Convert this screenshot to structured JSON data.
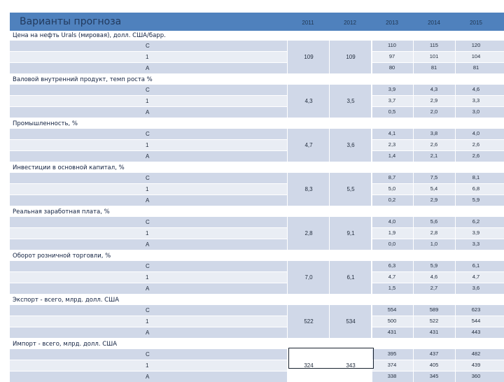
{
  "title": "Варианты прогноза",
  "years": [
    "2011",
    "2012",
    "2013",
    "2014",
    "2015"
  ],
  "sections": [
    {
      "label": "Цена на нефть Urals (мировая), долл. США/барр.",
      "v2011": "109",
      "v2012": "109",
      "rows": [
        {
          "scenario": "C",
          "v2013": "110",
          "v2014": "115",
          "v2015": "120"
        },
        {
          "scenario": "1",
          "v2013": "97",
          "v2014": "101",
          "v2015": "104"
        },
        {
          "scenario": "А",
          "v2013": "80",
          "v2014": "81",
          "v2015": "81"
        }
      ]
    },
    {
      "label": "Валовой внутренний продукт, темп роста %",
      "v2011": "4,3",
      "v2012": "3,5",
      "rows": [
        {
          "scenario": "C",
          "v2013": "3,9",
          "v2014": "4,3",
          "v2015": "4,6"
        },
        {
          "scenario": "1",
          "v2013": "3,7",
          "v2014": "2,9",
          "v2015": "3,3"
        },
        {
          "scenario": "А",
          "v2013": "0,5",
          "v2014": "2,0",
          "v2015": "3,0"
        }
      ]
    },
    {
      "label": "Промышленность, %",
      "v2011": "4,7",
      "v2012": "3,6",
      "rows": [
        {
          "scenario": "C",
          "v2013": "4,1",
          "v2014": "3,8",
          "v2015": "4,0"
        },
        {
          "scenario": "1",
          "v2013": "2,3",
          "v2014": "2,6",
          "v2015": "2,6"
        },
        {
          "scenario": "А",
          "v2013": "1,4",
          "v2014": "2,1",
          "v2015": "2,6"
        }
      ]
    },
    {
      "label": "Инвестиции в основной капитал, %",
      "v2011": "8,3",
      "v2012": "5,5",
      "rows": [
        {
          "scenario": "C",
          "v2013": "8,7",
          "v2014": "7,5",
          "v2015": "8,1"
        },
        {
          "scenario": "1",
          "v2013": "5,0",
          "v2014": "5,4",
          "v2015": "6,8"
        },
        {
          "scenario": "А",
          "v2013": "0,2",
          "v2014": "2,9",
          "v2015": "5,9"
        }
      ]
    },
    {
      "label": "Реальная заработная плата, %",
      "v2011": "2,8",
      "v2012": "9,1",
      "rows": [
        {
          "scenario": "C",
          "v2013": "4,0",
          "v2014": "5,6",
          "v2015": "6,2"
        },
        {
          "scenario": "1",
          "v2013": "1,9",
          "v2014": "2,8",
          "v2015": "3,9"
        },
        {
          "scenario": "А",
          "v2013": "0,0",
          "v2014": "1,0",
          "v2015": "3,3"
        }
      ]
    },
    {
      "label": "Оборот розничной торговли, %",
      "v2011": "7,0",
      "v2012": "6,1",
      "rows": [
        {
          "scenario": "C",
          "v2013": "6,3",
          "v2014": "5,9",
          "v2015": "6,1"
        },
        {
          "scenario": "1",
          "v2013": "4,7",
          "v2014": "4,6",
          "v2015": "4,7"
        },
        {
          "scenario": "А",
          "v2013": "1,5",
          "v2014": "2,7",
          "v2015": "3,6"
        }
      ]
    },
    {
      "label": "Экспорт - всего, млрд. долл. США",
      "v2011": "522",
      "v2012": "534",
      "rows": [
        {
          "scenario": "C",
          "v2013": "554",
          "v2014": "589",
          "v2015": "623"
        },
        {
          "scenario": "1",
          "v2013": "500",
          "v2014": "522",
          "v2015": "544"
        },
        {
          "scenario": "А",
          "v2013": "431",
          "v2014": "431",
          "v2015": "443"
        }
      ]
    },
    {
      "label": "Импорт - всего, млрд. долл. США",
      "v2011": "324",
      "v2012": "343",
      "rows": [
        {
          "scenario": "C",
          "v2013": "395",
          "v2014": "437",
          "v2015": "482"
        },
        {
          "scenario": "1",
          "v2013": "374",
          "v2014": "405",
          "v2015": "439"
        },
        {
          "scenario": "А",
          "v2013": "338",
          "v2014": "345",
          "v2015": "360"
        }
      ]
    }
  ]
}
